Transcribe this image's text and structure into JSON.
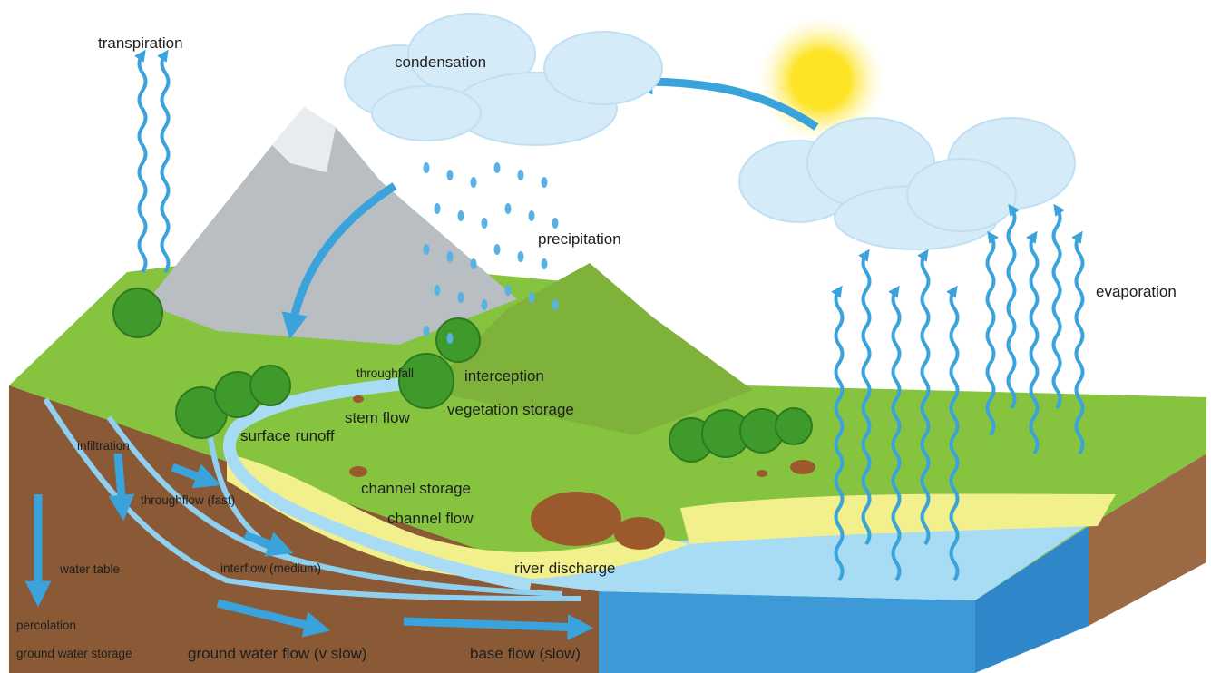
{
  "labels": [
    "transpiration",
    "condensation",
    "precipitation",
    "evaporation",
    "throughfall",
    "interception",
    "stem flow",
    "vegetation storage",
    "surface runoff",
    "infiltration",
    "throughflow (fast)",
    "channel storage",
    "channel flow",
    "water table",
    "interflow (medium)",
    "river discharge",
    "percolation",
    "ground water storage",
    "ground water flow (v slow)",
    "base flow (slow)"
  ]
}
